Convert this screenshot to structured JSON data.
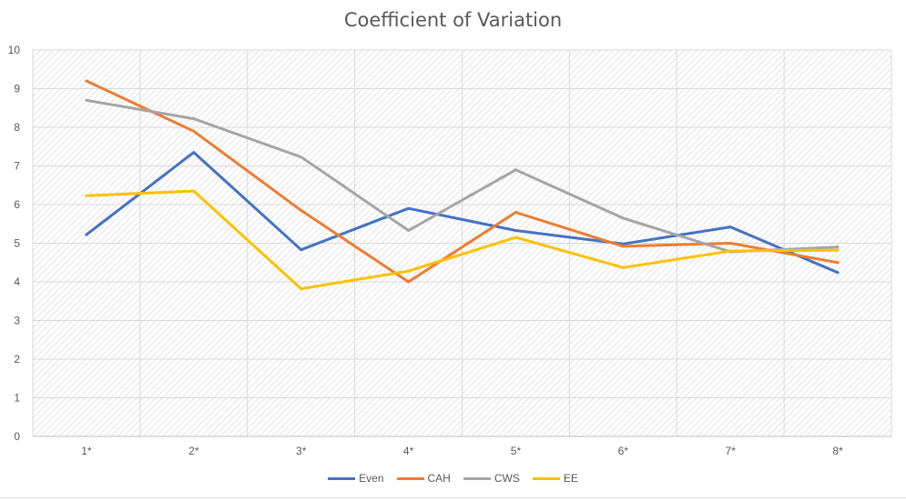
{
  "chart_data": {
    "type": "line",
    "title": "Coefficient of Variation",
    "xlabel": "",
    "ylabel": "",
    "categories": [
      "1*",
      "2*",
      "3*",
      "4*",
      "5*",
      "6*",
      "7*",
      "8*"
    ],
    "yticks": [
      "0",
      "1",
      "2",
      "3",
      "4",
      "5",
      "6",
      "7",
      "8",
      "9",
      "10"
    ],
    "ylim": [
      0,
      10
    ],
    "grid": true,
    "legend_position": "bottom",
    "series": [
      {
        "name": "Even",
        "color": "#4472C4",
        "values": [
          5.22,
          7.35,
          4.83,
          5.9,
          5.33,
          4.98,
          5.42,
          4.24
        ]
      },
      {
        "name": "CAH",
        "color": "#ED7D31",
        "values": [
          9.2,
          7.9,
          5.85,
          4.0,
          5.8,
          4.92,
          5.0,
          4.5
        ]
      },
      {
        "name": "CWS",
        "color": "#A5A5A5",
        "values": [
          8.7,
          8.22,
          7.23,
          5.33,
          6.9,
          5.65,
          4.78,
          4.9
        ]
      },
      {
        "name": "EE",
        "color": "#FFC000",
        "values": [
          6.23,
          6.35,
          3.82,
          4.28,
          5.15,
          4.37,
          4.8,
          4.82
        ]
      }
    ]
  }
}
